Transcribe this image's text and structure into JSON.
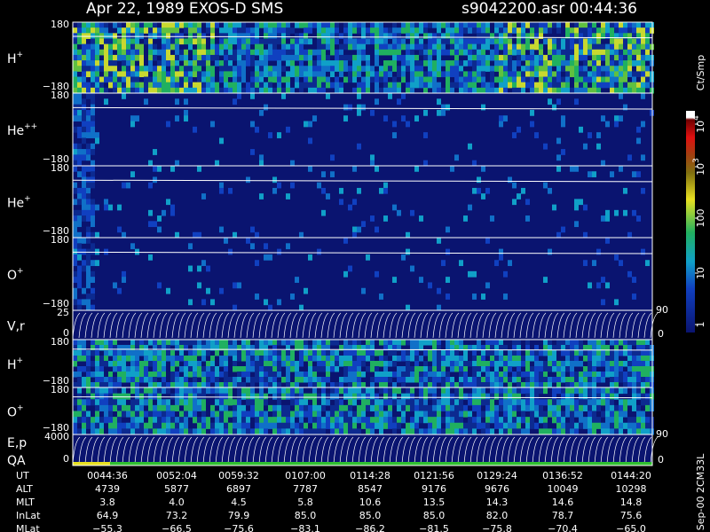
{
  "header": {
    "left": "Apr 22, 1989   EXOS-D SMS",
    "right": "s9042200.asr  00:44:36"
  },
  "panels": [
    {
      "label": {
        "base": "H",
        "sup": "+"
      },
      "top": "180",
      "bottom": "−180"
    },
    {
      "label": {
        "base": "He",
        "sup": "++"
      },
      "top": "180",
      "bottom": "−180"
    },
    {
      "label": {
        "base": "He",
        "sup": "+"
      },
      "top": "180",
      "bottom": "−180"
    },
    {
      "label": {
        "base": "O",
        "sup": "+"
      },
      "top": "180",
      "bottom": "−180"
    },
    {
      "label": {
        "base": "V,r",
        "sup": ""
      },
      "top": "25",
      "bottom": "0",
      "right_top": "90",
      "right_bottom": "0"
    },
    {
      "label": {
        "base": "H",
        "sup": "+"
      },
      "top": "180",
      "bottom": "−180"
    },
    {
      "label": {
        "base": "O",
        "sup": "+"
      },
      "top": "180",
      "bottom": "−180"
    },
    {
      "label": {
        "base": "E,p",
        "sup": ""
      },
      "label2": "QA",
      "top": "4000",
      "bottom": "0",
      "right_top": "90",
      "right_bottom": "0"
    }
  ],
  "colorbar": {
    "title": "Ct/Smp",
    "ticks": [
      {
        "base": "10",
        "sup": "4"
      },
      {
        "base": "10",
        "sup": "3"
      },
      {
        "base": "100",
        "sup": ""
      },
      {
        "base": "10",
        "sup": ""
      },
      {
        "base": "1",
        "sup": ""
      }
    ]
  },
  "footer_note": "Sep-00  2CM33L",
  "table": {
    "rows": [
      [
        "UT",
        "0044:36",
        "0052:04",
        "0059:32",
        "0107:00",
        "0114:28",
        "0121:56",
        "0129:24",
        "0136:52",
        "0144:20"
      ],
      [
        "ALT",
        "4739",
        "5877",
        "6897",
        "7787",
        "8547",
        "9176",
        "9676",
        "10049",
        "10298"
      ],
      [
        "MLT",
        "3.8",
        "4.0",
        "4.5",
        "5.8",
        "10.6",
        "13.5",
        "14.3",
        "14.6",
        "14.8"
      ],
      [
        "InLat",
        "64.9",
        "73.2",
        "79.9",
        "85.0",
        "85.0",
        "85.0",
        "82.0",
        "78.7",
        "75.6"
      ],
      [
        "MLat",
        "−55.3",
        "−66.5",
        "−75.6",
        "−83.1",
        "−86.2",
        "−81.5",
        "−75.8",
        "−70.4",
        "−65.0"
      ]
    ]
  }
}
